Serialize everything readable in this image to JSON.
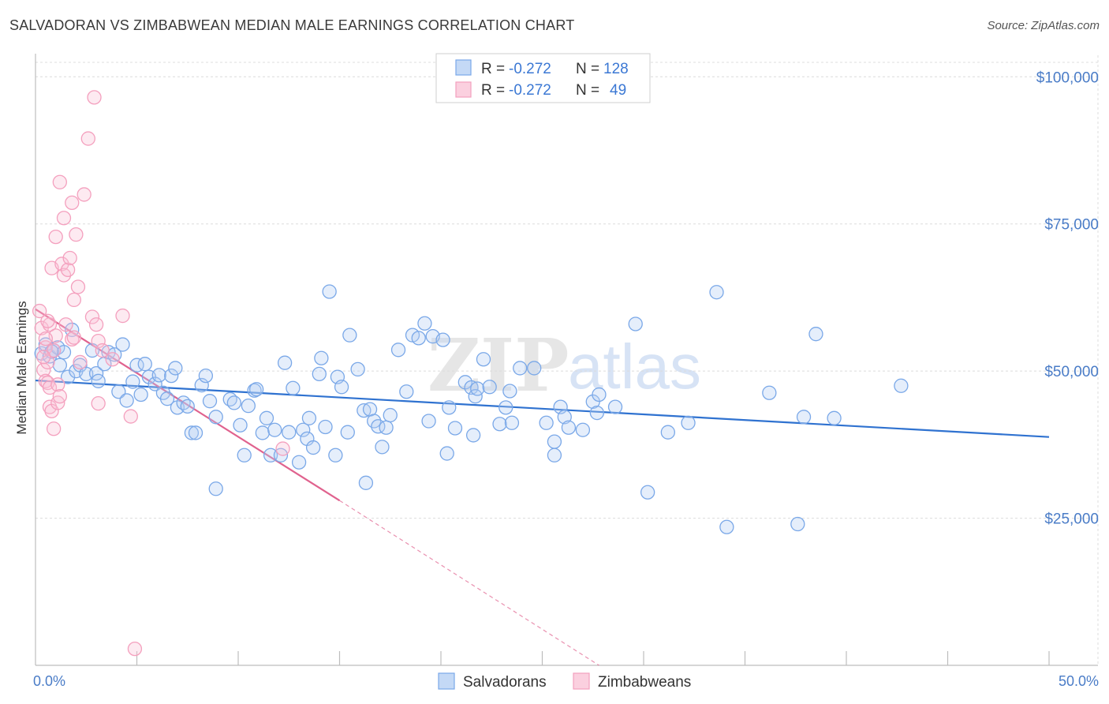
{
  "title": "SALVADORAN VS ZIMBABWEAN MEDIAN MALE EARNINGS CORRELATION CHART",
  "source": "Source: ZipAtlas.com",
  "watermark": {
    "zip": "ZIP",
    "atlas": "atlas"
  },
  "chart_data": {
    "type": "scatter",
    "title": "SALVADORAN VS ZIMBABWEAN MEDIAN MALE EARNINGS CORRELATION CHART",
    "xlabel": "",
    "ylabel": "Median Male Earnings",
    "xlim": [
      0,
      50
    ],
    "ylim": [
      0,
      105000
    ],
    "x_tick_labels": [
      "0.0%",
      "50.0%"
    ],
    "y_ticks": [
      25000,
      50000,
      75000,
      100000
    ],
    "y_tick_labels": [
      "$25,000",
      "$50,000",
      "$75,000",
      "$100,000"
    ],
    "grid": true,
    "legend_placement": "top-center",
    "legend": [
      {
        "r_label": "R = ",
        "r_value": "-0.272",
        "n_label": "N = ",
        "n_value": "128"
      },
      {
        "r_label": "R = ",
        "r_value": "-0.272",
        "n_label": "N = ",
        "n_value": "49"
      }
    ],
    "series": [
      {
        "name": "Salvadorans",
        "color": "#7aa8e8",
        "line_color": "#2f72d0",
        "trend": {
          "x": [
            0.0,
            50.0
          ],
          "y": [
            48400,
            38800
          ]
        },
        "points": [
          [
            0.3,
            53000
          ],
          [
            0.5,
            54500
          ],
          [
            0.7,
            52500
          ],
          [
            0.9,
            53500
          ],
          [
            1.1,
            54000
          ],
          [
            1.2,
            51000
          ],
          [
            1.4,
            53200
          ],
          [
            1.6,
            49000
          ],
          [
            1.8,
            57000
          ],
          [
            2.0,
            50000
          ],
          [
            2.2,
            51000
          ],
          [
            2.5,
            49500
          ],
          [
            2.8,
            53500
          ],
          [
            3.0,
            49600
          ],
          [
            3.1,
            48300
          ],
          [
            3.4,
            51200
          ],
          [
            3.6,
            53200
          ],
          [
            3.9,
            52800
          ],
          [
            4.1,
            46500
          ],
          [
            4.3,
            54500
          ],
          [
            4.5,
            45000
          ],
          [
            4.8,
            48200
          ],
          [
            5.0,
            51000
          ],
          [
            5.2,
            46000
          ],
          [
            5.4,
            51200
          ],
          [
            5.6,
            49000
          ],
          [
            5.9,
            47800
          ],
          [
            6.1,
            49300
          ],
          [
            6.3,
            46300
          ],
          [
            6.5,
            45300
          ],
          [
            6.7,
            49200
          ],
          [
            6.9,
            50500
          ],
          [
            7.0,
            43800
          ],
          [
            7.3,
            44600
          ],
          [
            7.5,
            44000
          ],
          [
            7.7,
            39500
          ],
          [
            7.9,
            39500
          ],
          [
            8.2,
            47600
          ],
          [
            8.4,
            49200
          ],
          [
            8.6,
            44900
          ],
          [
            8.9,
            42200
          ],
          [
            8.9,
            30000
          ],
          [
            9.6,
            45200
          ],
          [
            9.8,
            44600
          ],
          [
            10.1,
            40800
          ],
          [
            10.3,
            35700
          ],
          [
            10.5,
            44100
          ],
          [
            10.8,
            46700
          ],
          [
            10.9,
            46900
          ],
          [
            11.2,
            39500
          ],
          [
            11.4,
            42000
          ],
          [
            11.6,
            35700
          ],
          [
            11.8,
            40000
          ],
          [
            12.1,
            35700
          ],
          [
            12.3,
            51400
          ],
          [
            12.5,
            39600
          ],
          [
            12.7,
            47100
          ],
          [
            13.0,
            34500
          ],
          [
            13.2,
            40000
          ],
          [
            13.4,
            38500
          ],
          [
            13.5,
            42000
          ],
          [
            13.7,
            37000
          ],
          [
            14.0,
            49500
          ],
          [
            14.1,
            52200
          ],
          [
            14.3,
            40500
          ],
          [
            14.5,
            63500
          ],
          [
            14.8,
            35700
          ],
          [
            14.9,
            49000
          ],
          [
            15.1,
            47300
          ],
          [
            15.4,
            39600
          ],
          [
            15.5,
            56100
          ],
          [
            15.9,
            50300
          ],
          [
            16.2,
            43300
          ],
          [
            16.3,
            31000
          ],
          [
            16.5,
            43500
          ],
          [
            16.7,
            41500
          ],
          [
            16.9,
            40600
          ],
          [
            17.1,
            37100
          ],
          [
            17.3,
            40400
          ],
          [
            17.5,
            42500
          ],
          [
            17.9,
            53600
          ],
          [
            18.3,
            46500
          ],
          [
            18.6,
            56100
          ],
          [
            18.9,
            55600
          ],
          [
            19.2,
            58100
          ],
          [
            19.4,
            41500
          ],
          [
            19.6,
            55900
          ],
          [
            20.1,
            55300
          ],
          [
            20.3,
            36000
          ],
          [
            20.4,
            43800
          ],
          [
            20.7,
            40300
          ],
          [
            21.2,
            48100
          ],
          [
            21.5,
            47200
          ],
          [
            21.6,
            39100
          ],
          [
            21.7,
            45700
          ],
          [
            21.8,
            47000
          ],
          [
            22.1,
            52000
          ],
          [
            22.4,
            47300
          ],
          [
            22.9,
            41000
          ],
          [
            23.2,
            43800
          ],
          [
            23.4,
            46600
          ],
          [
            23.5,
            41200
          ],
          [
            23.9,
            50500
          ],
          [
            24.6,
            50500
          ],
          [
            25.2,
            41200
          ],
          [
            25.6,
            38000
          ],
          [
            25.6,
            35700
          ],
          [
            25.9,
            43900
          ],
          [
            26.1,
            42200
          ],
          [
            26.3,
            40400
          ],
          [
            27.0,
            40000
          ],
          [
            27.5,
            44800
          ],
          [
            27.7,
            42900
          ],
          [
            27.8,
            46000
          ],
          [
            28.6,
            43900
          ],
          [
            29.6,
            58000
          ],
          [
            30.2,
            29400
          ],
          [
            31.2,
            39600
          ],
          [
            32.2,
            41200
          ],
          [
            33.6,
            63400
          ],
          [
            34.1,
            23500
          ],
          [
            36.2,
            46300
          ],
          [
            37.6,
            24000
          ],
          [
            37.9,
            42200
          ],
          [
            38.5,
            56300
          ],
          [
            39.4,
            42000
          ],
          [
            42.7,
            47500
          ],
          [
            0.8,
            53300
          ]
        ]
      },
      {
        "name": "Zimbabweans",
        "color": "#f4a0be",
        "line_color": "#e0628e",
        "trend": {
          "x": [
            0.0,
            15.0
          ],
          "y": [
            60500,
            28000
          ]
        },
        "trend_extension": {
          "x": [
            15.0,
            27.8
          ],
          "y": [
            28000,
            0
          ]
        },
        "points": [
          [
            0.2,
            60200
          ],
          [
            0.3,
            57300
          ],
          [
            0.4,
            50200
          ],
          [
            0.5,
            54000
          ],
          [
            0.5,
            48300
          ],
          [
            0.6,
            51500
          ],
          [
            0.6,
            48000
          ],
          [
            0.7,
            57900
          ],
          [
            0.7,
            47200
          ],
          [
            0.7,
            43900
          ],
          [
            0.8,
            43200
          ],
          [
            0.8,
            67500
          ],
          [
            0.9,
            40200
          ],
          [
            0.9,
            53500
          ],
          [
            1.0,
            72800
          ],
          [
            1.0,
            56000
          ],
          [
            1.1,
            47700
          ],
          [
            1.1,
            44600
          ],
          [
            1.2,
            45700
          ],
          [
            1.2,
            82100
          ],
          [
            1.3,
            68200
          ],
          [
            1.4,
            66300
          ],
          [
            1.4,
            76000
          ],
          [
            1.5,
            57900
          ],
          [
            1.6,
            67200
          ],
          [
            1.7,
            69200
          ],
          [
            1.8,
            78600
          ],
          [
            1.8,
            55400
          ],
          [
            1.9,
            62100
          ],
          [
            2.0,
            73200
          ],
          [
            2.1,
            64300
          ],
          [
            2.2,
            51500
          ],
          [
            2.4,
            80000
          ],
          [
            2.6,
            89500
          ],
          [
            2.8,
            59200
          ],
          [
            2.9,
            96500
          ],
          [
            3.0,
            57900
          ],
          [
            3.1,
            55100
          ],
          [
            3.3,
            53500
          ],
          [
            3.1,
            44500
          ],
          [
            3.8,
            52000
          ],
          [
            4.3,
            59400
          ],
          [
            4.7,
            42300
          ],
          [
            4.9,
            2800
          ],
          [
            12.2,
            36800
          ],
          [
            0.5,
            55500
          ],
          [
            0.4,
            52400
          ],
          [
            0.6,
            58500
          ],
          [
            1.9,
            55700
          ]
        ]
      }
    ]
  },
  "bottom_legend": [
    "Salvadorans",
    "Zimbabweans"
  ]
}
